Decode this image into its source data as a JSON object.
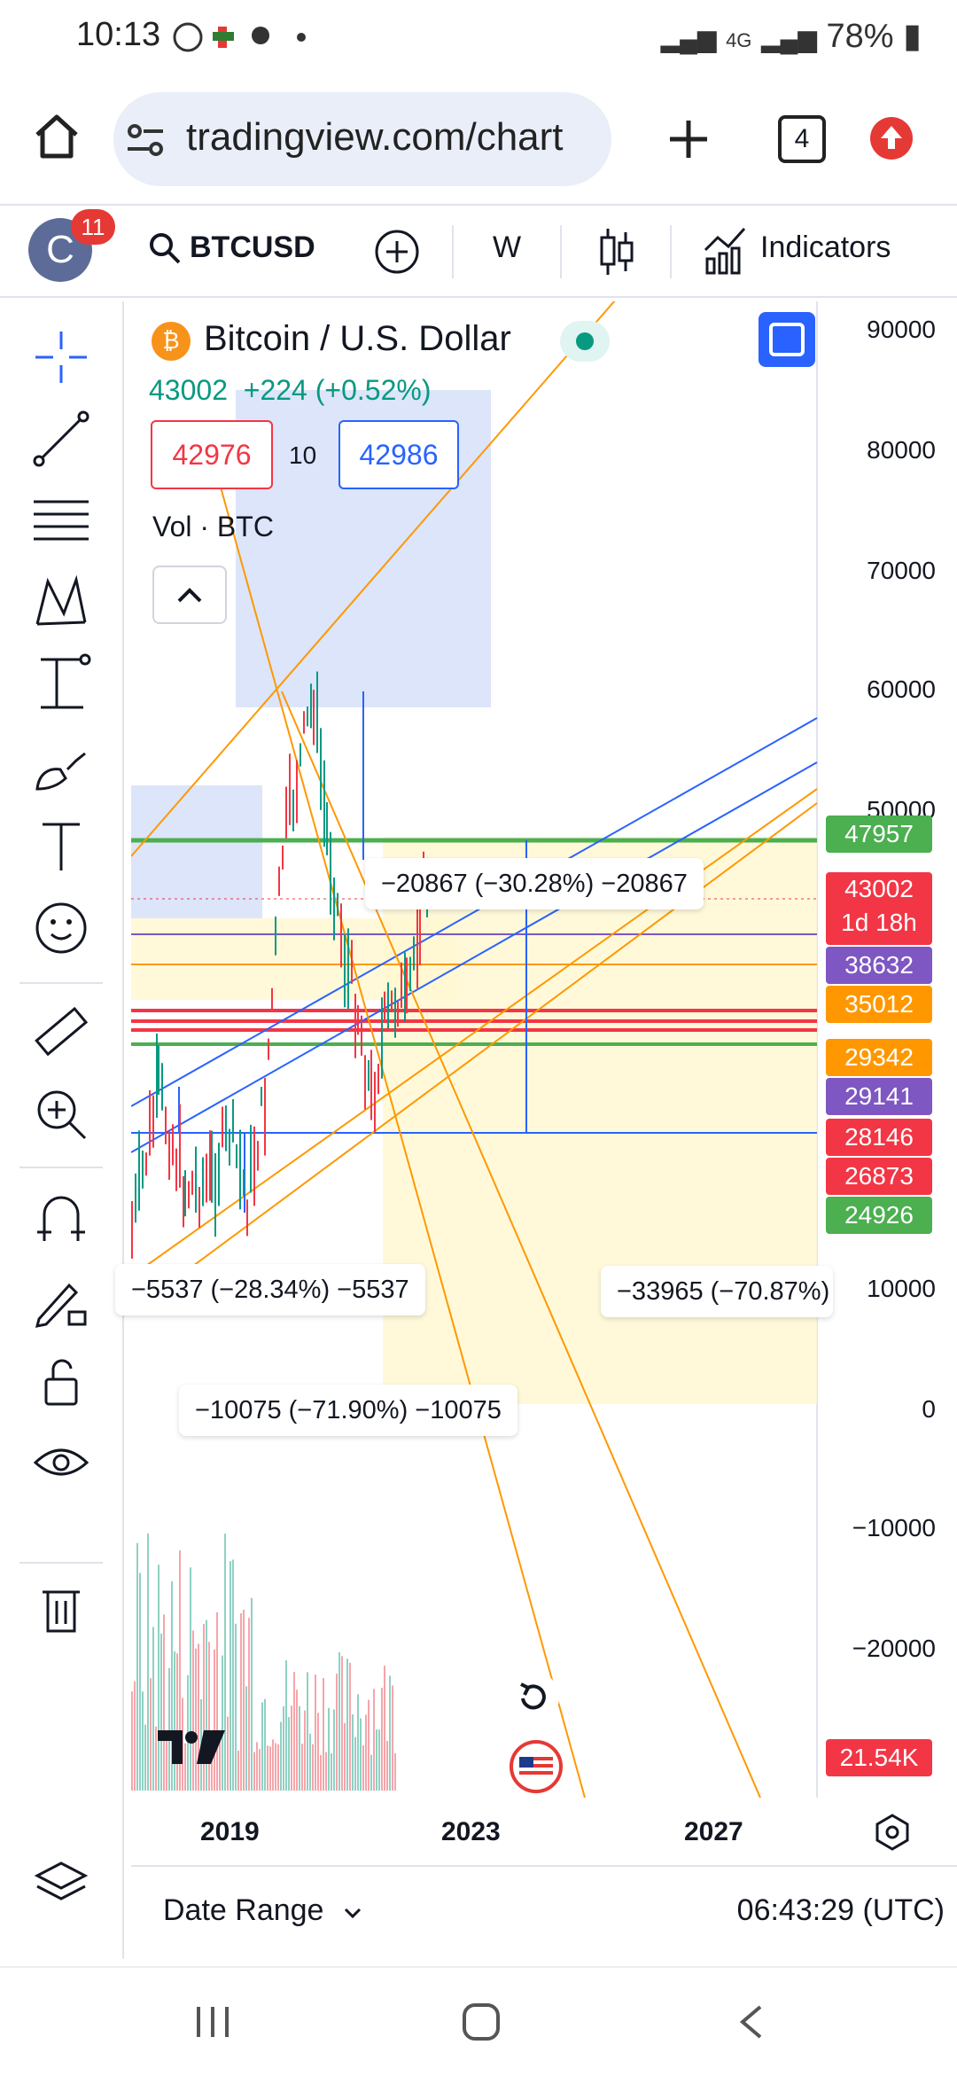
{
  "status_bar": {
    "time": "10:13",
    "network": "4G",
    "battery": "78%"
  },
  "browser": {
    "url": "tradingview.com/chart",
    "tab_count": "4"
  },
  "toolbar": {
    "avatar_letter": "C",
    "notification_count": "11",
    "symbol": "BTCUSD",
    "interval": "W",
    "indicators_label": "Indicators"
  },
  "chart": {
    "title": "Bitcoin / U.S. Dollar",
    "quote": "43002  +224 (+0.52%)",
    "bid": "42976",
    "spread": "10",
    "ask": "42986",
    "volume_label": "Vol · BTC",
    "y_axis_labels": [
      "90000",
      "80000",
      "70000",
      "60000",
      "50000",
      "10000",
      "0",
      "−10000",
      "−20000"
    ],
    "price_labels": [
      {
        "text": "47957",
        "color": "#4caf50"
      },
      {
        "text": "43002\n1d 18h",
        "color": "#f23645"
      },
      {
        "text": "38632",
        "color": "#7e57c2"
      },
      {
        "text": "35012",
        "color": "#ff9800"
      },
      {
        "text": "29342",
        "color": "#ff9800"
      },
      {
        "text": "29141",
        "color": "#7e57c2"
      },
      {
        "text": "28146",
        "color": "#f23645"
      },
      {
        "text": "26873",
        "color": "#f23645"
      },
      {
        "text": "24926",
        "color": "#4caf50"
      }
    ],
    "volume_value": "21.54K",
    "measurements": [
      "−20867 (−30.28%) −20867",
      "−5537 (−28.34%) −5537",
      "−33965 (−70.87%)",
      "−10075 (−71.90%) −10075"
    ],
    "x_axis_labels": [
      "2019",
      "2023",
      "2027"
    ]
  },
  "bottom": {
    "date_range_label": "Date Range",
    "clock": "06:43:29 (UTC)"
  }
}
